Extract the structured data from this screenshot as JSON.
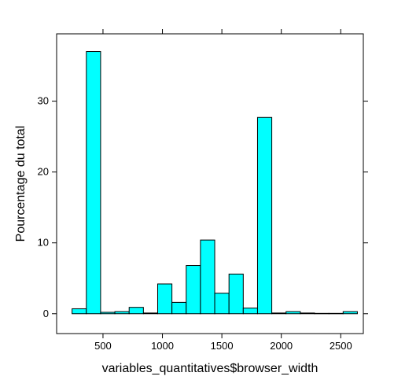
{
  "chart_data": {
    "type": "bar",
    "title": "",
    "xlabel": "variables_quantitatives$browser_width",
    "ylabel": "Pourcentage du total",
    "xlim": [
      110,
      2690
    ],
    "ylim": [
      -2.8,
      39.5
    ],
    "x_ticks": [
      500,
      1000,
      1500,
      2000,
      2500
    ],
    "y_ticks": [
      0,
      10,
      20,
      30
    ],
    "x_tick_labels": [
      "500",
      "1000",
      "1500",
      "2000",
      "2500"
    ],
    "y_tick_labels": [
      "0",
      "10",
      "20",
      "30"
    ],
    "bin_edges": [
      240,
      360,
      480,
      600,
      720,
      840,
      960,
      1080,
      1200,
      1320,
      1440,
      1560,
      1680,
      1800,
      1920,
      2040,
      2160,
      2280,
      2400,
      2520,
      2640
    ],
    "values": [
      0.7,
      37.0,
      0.2,
      0.3,
      0.9,
      0.1,
      4.2,
      1.6,
      6.8,
      10.4,
      2.9,
      5.6,
      0.8,
      27.7,
      0.1,
      0.3,
      0.1,
      0.05,
      0.05,
      0.3
    ],
    "bar_color": "#00ffff",
    "grid": false,
    "legend": "none"
  }
}
